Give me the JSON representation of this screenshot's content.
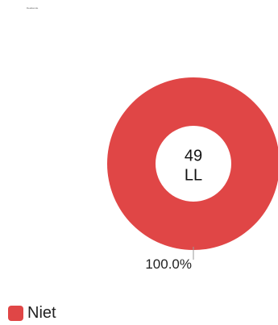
{
  "chart_data": {
    "type": "pie",
    "donut": true,
    "title": "Deelkende",
    "center_value": "49",
    "center_unit": "LL",
    "slices": [
      {
        "label": "Niet",
        "value": 49,
        "percent_label": "100.0%",
        "color": "#e04646"
      }
    ],
    "legend": "bottom-left"
  }
}
